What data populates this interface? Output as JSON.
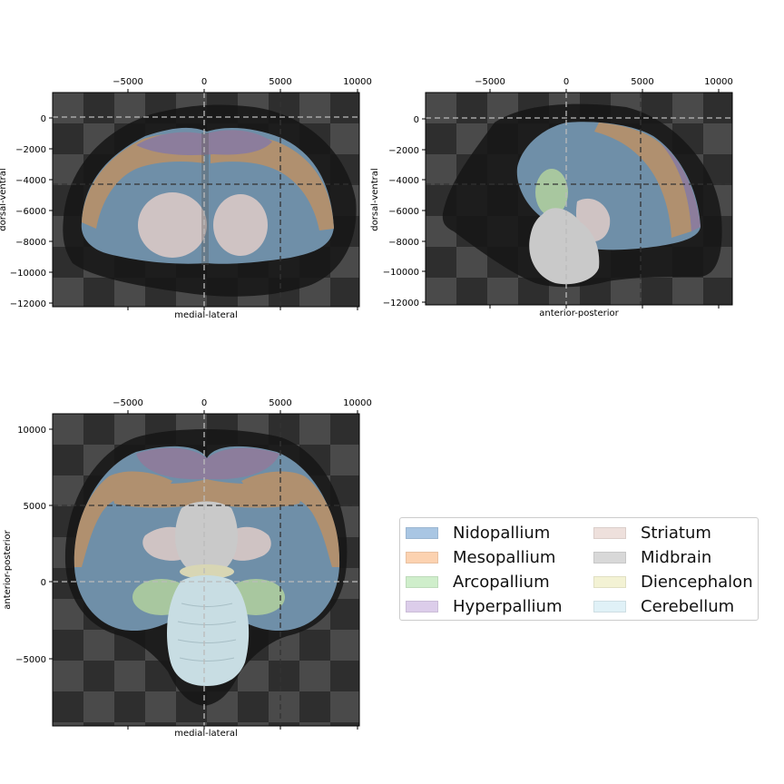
{
  "chart_data": [
    {
      "type": "image-panel",
      "name": "coronal",
      "xlabel": "medial-lateral",
      "ylabel": "dorsal-ventral",
      "x_ticks": [
        "−5000",
        "0",
        "5000",
        "10000"
      ],
      "y_ticks": [
        "0",
        "−2000",
        "−4000",
        "−6000",
        "−8000",
        "−10000",
        "−12000"
      ],
      "crosshair": {
        "x": [
          0,
          5000
        ],
        "y": [
          0,
          -4300
        ]
      }
    },
    {
      "type": "image-panel",
      "name": "sagittal",
      "xlabel": "anterior-posterior",
      "ylabel": "dorsal-ventral",
      "x_ticks": [
        "−5000",
        "0",
        "5000",
        "10000"
      ],
      "y_ticks": [
        "0",
        "−2000",
        "−4000",
        "−6000",
        "−8000",
        "−10000",
        "−12000"
      ],
      "crosshair": {
        "x": [
          0,
          5000
        ],
        "y": [
          0,
          -4300
        ]
      }
    },
    {
      "type": "image-panel",
      "name": "axial",
      "xlabel": "medial-lateral",
      "ylabel": "anterior-posterior",
      "x_ticks": [
        "−5000",
        "0",
        "5000",
        "10000"
      ],
      "y_ticks": [
        "10000",
        "5000",
        "0",
        "−5000"
      ],
      "crosshair": {
        "x": [
          0,
          5000
        ],
        "y": [
          5000,
          0
        ]
      }
    }
  ],
  "legend": {
    "items": [
      {
        "label": "Nidopallium",
        "color": "#a9c6e3"
      },
      {
        "label": "Mesopallium",
        "color": "#fcd2b0"
      },
      {
        "label": "Arcopallium",
        "color": "#cfeecb"
      },
      {
        "label": "Hyperpallium",
        "color": "#dccdea"
      },
      {
        "label": "Striatum",
        "color": "#eee0dc"
      },
      {
        "label": "Midbrain",
        "color": "#d8d8d8"
      },
      {
        "label": "Diencephalon",
        "color": "#f3f2d4"
      },
      {
        "label": "Cerebellum",
        "color": "#e0f1f7"
      }
    ]
  },
  "colors": {
    "checker_dark": "#2e2e2e",
    "checker_light": "#4a4a4a",
    "shadow": "#151515",
    "nidopallium": "#6f8fa8",
    "mesopallium": "#b0906f",
    "hyperpallium": "#8c7d9c",
    "striatum": "#cfc3c3",
    "midbrain": "#c9c9c9",
    "arcopallium": "#a8c79f",
    "cerebellum": "#c8dde3",
    "diencephalon": "#d8d6b4"
  }
}
